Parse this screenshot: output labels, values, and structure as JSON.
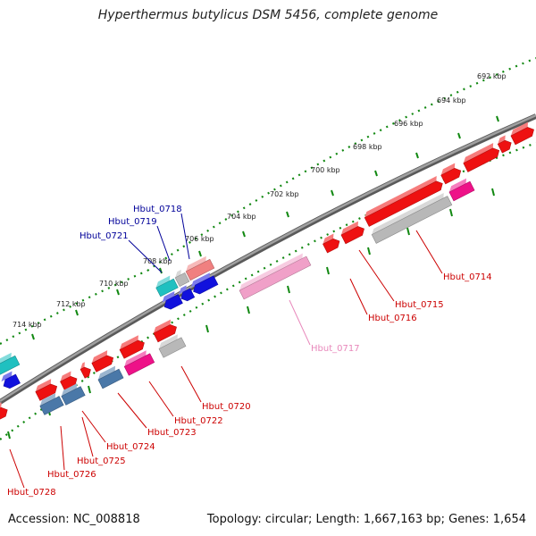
{
  "title": "Hyperthermus butylicus DSM 5456, complete genome",
  "footer": {
    "accession": "Accession: NC_008818",
    "summary": "Topology: circular; Length: 1,667,163 bp; Genes: 1,654"
  },
  "colors": {
    "backbone": "#808080",
    "tick_track": "#118811",
    "forward_red": "#ee1111",
    "salmon": "#f08080",
    "pink": "#ee1188",
    "light_pink": "#f0a0c8",
    "gray": "#b8b8b8",
    "cyan": "#20c0c0",
    "blue": "#1111dd",
    "steel_blue": "#4a78a8",
    "label_red": "#cc0000",
    "label_blue": "#000099",
    "label_pink": "#e888bb"
  },
  "scale_labels": [
    {
      "text": "692 kbp"
    },
    {
      "text": "694 kbp"
    },
    {
      "text": "696 kbp"
    },
    {
      "text": "698 kbp"
    },
    {
      "text": "700 kbp"
    },
    {
      "text": "702 kbp"
    },
    {
      "text": "704 kbp"
    },
    {
      "text": "706 kbp"
    },
    {
      "text": "708 kbp"
    },
    {
      "text": "710 kbp"
    },
    {
      "text": "712 kbp"
    },
    {
      "text": "714 kbp"
    }
  ],
  "gene_labels": [
    {
      "text": "Hbut_0714",
      "color": "label_red"
    },
    {
      "text": "Hbut_0715",
      "color": "label_red"
    },
    {
      "text": "Hbut_0716",
      "color": "label_red"
    },
    {
      "text": "Hbut_0717",
      "color": "label_pink"
    },
    {
      "text": "Hbut_0718",
      "color": "label_blue"
    },
    {
      "text": "Hbut_0719",
      "color": "label_blue"
    },
    {
      "text": "Hbut_0720",
      "color": "label_red"
    },
    {
      "text": "Hbut_0721",
      "color": "label_blue"
    },
    {
      "text": "Hbut_0722",
      "color": "label_red"
    },
    {
      "text": "Hbut_0723",
      "color": "label_red"
    },
    {
      "text": "Hbut_0724",
      "color": "label_red"
    },
    {
      "text": "Hbut_0725",
      "color": "label_red"
    },
    {
      "text": "Hbut_0726",
      "color": "label_red"
    },
    {
      "text": "Hbut_0728",
      "color": "label_red"
    }
  ]
}
